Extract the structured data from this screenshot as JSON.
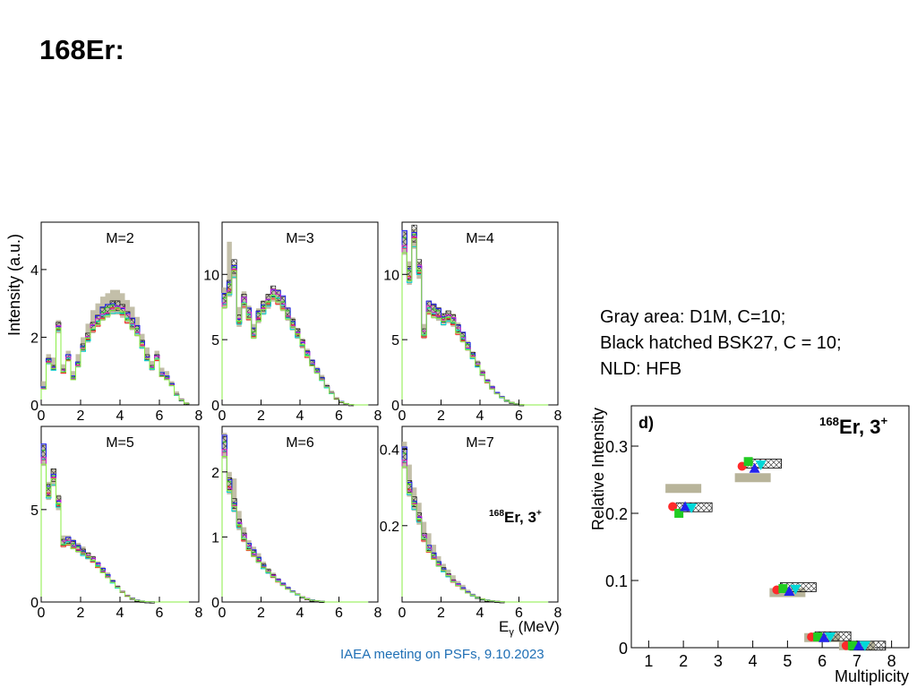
{
  "slide": {
    "title": "168Er:",
    "notes": [
      "Gray area: D1M, C=10;",
      "Black hatched BSK27, C = 10;",
      "NLD: HFB"
    ],
    "footer": "IAEA meeting on PSFs, 9.10.2023"
  },
  "colors": {
    "gray_band": "#b8b49a",
    "series": [
      "#ff2a2a",
      "#22cc22",
      "#2222ee",
      "#00d8d8",
      "#cc22cc",
      "#88ee44"
    ]
  },
  "chart_data": [
    {
      "type": "line",
      "ylabel": "Intensity (a.u.)",
      "xlabel": "",
      "x_ticks": [
        0,
        2,
        4,
        6,
        8
      ],
      "panels": [
        {
          "label": "M=2",
          "ylim": [
            0,
            5.4
          ],
          "y_ticks": [
            0,
            2,
            4
          ],
          "x": [
            0.25,
            0.5,
            0.75,
            1.0,
            1.25,
            1.5,
            1.75,
            2.0,
            2.25,
            2.5,
            2.75,
            3.0,
            3.25,
            3.5,
            3.75,
            4.0,
            4.25,
            4.5,
            4.75,
            5.0,
            5.25,
            5.5,
            5.75,
            6.0,
            6.25,
            6.5,
            6.75,
            7.0,
            7.25,
            7.5
          ],
          "values": [
            0.5,
            1.3,
            1.1,
            2.3,
            1.0,
            1.4,
            0.8,
            1.2,
            1.7,
            2.0,
            2.3,
            2.5,
            2.7,
            2.8,
            2.9,
            2.9,
            2.8,
            2.6,
            2.4,
            2.2,
            1.8,
            1.4,
            1.1,
            1.4,
            0.9,
            0.8,
            0.6,
            0.3,
            0.15,
            0.05
          ],
          "band_high": [
            0.7,
            1.5,
            1.4,
            2.5,
            1.2,
            1.6,
            1.0,
            1.5,
            2.0,
            2.4,
            2.8,
            3.0,
            3.2,
            3.3,
            3.4,
            3.4,
            3.3,
            3.1,
            2.9,
            2.6,
            2.1,
            1.7,
            1.3,
            1.6,
            1.1,
            1.0,
            0.7,
            0.4,
            0.2,
            0.08
          ]
        },
        {
          "label": "M=3",
          "ylim": [
            0,
            14
          ],
          "y_ticks": [
            0,
            5,
            10
          ],
          "x": [
            0.25,
            0.5,
            0.75,
            1.0,
            1.25,
            1.5,
            1.75,
            2.0,
            2.25,
            2.5,
            2.75,
            3.0,
            3.25,
            3.5,
            3.75,
            4.0,
            4.25,
            4.5,
            4.75,
            5.0,
            5.25,
            5.5,
            5.75,
            6.0,
            6.25,
            6.5,
            6.75,
            7.0,
            7.25,
            7.5
          ],
          "values": [
            8.0,
            9.0,
            10.5,
            6.5,
            8.0,
            7.0,
            5.5,
            6.8,
            7.5,
            8.0,
            8.6,
            8.3,
            7.8,
            7.0,
            6.2,
            5.5,
            4.7,
            3.9,
            3.2,
            2.6,
            2.0,
            1.4,
            0.9,
            0.5,
            0.25,
            0.1,
            0.03,
            0,
            0,
            0
          ],
          "band_high": [
            9.0,
            12.5,
            10.8,
            7.5,
            8.7,
            7.6,
            6.2,
            7.4,
            8.0,
            8.5,
            9.0,
            8.7,
            8.2,
            7.5,
            6.7,
            5.9,
            5.1,
            4.3,
            3.5,
            2.9,
            2.3,
            1.6,
            1.1,
            0.6,
            0.3,
            0.15,
            0.05,
            0,
            0,
            0
          ]
        },
        {
          "label": "M=4",
          "ylim": [
            0,
            14
          ],
          "y_ticks": [
            0,
            5,
            10
          ],
          "x": [
            0.25,
            0.5,
            0.75,
            1.0,
            1.25,
            1.5,
            1.75,
            2.0,
            2.25,
            2.5,
            2.75,
            3.0,
            3.25,
            3.5,
            3.75,
            4.0,
            4.25,
            4.5,
            4.75,
            5.0,
            5.25,
            5.5,
            5.75,
            6.0,
            6.25,
            6.5,
            6.75,
            7.0,
            7.25,
            7.5
          ],
          "values": [
            12.5,
            10.0,
            13.0,
            10.5,
            5.5,
            7.5,
            7.2,
            7.0,
            6.6,
            6.8,
            6.5,
            5.8,
            5.2,
            4.5,
            3.8,
            3.1,
            2.4,
            1.8,
            1.3,
            0.9,
            0.6,
            0.35,
            0.2,
            0.08,
            0.03,
            0,
            0,
            0,
            0,
            0
          ],
          "band_high": [
            13.2,
            11.0,
            13.5,
            11.0,
            6.2,
            8.0,
            7.8,
            7.5,
            7.0,
            7.2,
            7.0,
            6.3,
            5.6,
            4.9,
            4.1,
            3.4,
            2.7,
            2.0,
            1.5,
            1.0,
            0.7,
            0.4,
            0.25,
            0.1,
            0.04,
            0,
            0,
            0,
            0,
            0
          ]
        },
        {
          "label": "M=5",
          "ylim": [
            0,
            9.5
          ],
          "y_ticks": [
            0,
            5
          ],
          "x": [
            0.25,
            0.5,
            0.75,
            1.0,
            1.25,
            1.5,
            1.75,
            2.0,
            2.25,
            2.5,
            2.75,
            3.0,
            3.25,
            3.5,
            3.75,
            4.0,
            4.25,
            4.5,
            4.75,
            5.0,
            5.25,
            5.5,
            5.75,
            6.0,
            6.25,
            6.5,
            6.75,
            7.0,
            7.25,
            7.5
          ],
          "values": [
            8.0,
            6.0,
            6.8,
            5.4,
            3.2,
            3.3,
            3.1,
            2.9,
            2.7,
            2.5,
            2.3,
            2.0,
            1.7,
            1.4,
            1.1,
            0.8,
            0.55,
            0.35,
            0.2,
            0.1,
            0.05,
            0.02,
            0.01,
            0,
            0,
            0,
            0,
            0,
            0,
            0
          ],
          "band_high": [
            8.5,
            6.5,
            7.2,
            5.8,
            3.6,
            3.6,
            3.4,
            3.2,
            3.0,
            2.7,
            2.5,
            2.2,
            1.9,
            1.6,
            1.2,
            0.9,
            0.6,
            0.4,
            0.25,
            0.12,
            0.06,
            0.03,
            0.01,
            0,
            0,
            0,
            0,
            0,
            0,
            0
          ]
        },
        {
          "label": "M=6",
          "ylim": [
            0,
            2.7
          ],
          "y_ticks": [
            0,
            1,
            2
          ],
          "x": [
            0.25,
            0.5,
            0.75,
            1.0,
            1.25,
            1.5,
            1.75,
            2.0,
            2.25,
            2.5,
            2.75,
            3.0,
            3.25,
            3.5,
            3.75,
            4.0,
            4.25,
            4.5,
            4.75,
            5.0,
            5.25,
            5.5,
            5.75,
            6.0,
            6.25,
            6.5,
            6.75,
            7.0,
            7.25,
            7.5
          ],
          "values": [
            2.4,
            1.8,
            1.5,
            1.2,
            1.0,
            0.85,
            0.75,
            0.65,
            0.55,
            0.47,
            0.4,
            0.33,
            0.27,
            0.21,
            0.16,
            0.12,
            0.08,
            0.05,
            0.03,
            0.02,
            0.01,
            0,
            0,
            0,
            0,
            0,
            0,
            0,
            0,
            0
          ],
          "band_high": [
            2.6,
            2.0,
            1.9,
            1.4,
            1.15,
            0.95,
            0.85,
            0.75,
            0.62,
            0.52,
            0.45,
            0.37,
            0.3,
            0.24,
            0.18,
            0.13,
            0.09,
            0.06,
            0.035,
            0.02,
            0.01,
            0,
            0,
            0,
            0,
            0,
            0,
            0,
            0,
            0
          ]
        },
        {
          "label": "M=7",
          "ylim": [
            0,
            0.46
          ],
          "y_ticks": [
            0.2,
            0.4
          ],
          "x": [
            0.25,
            0.5,
            0.75,
            1.0,
            1.25,
            1.5,
            1.75,
            2.0,
            2.25,
            2.5,
            2.75,
            3.0,
            3.25,
            3.5,
            3.75,
            4.0,
            4.25,
            4.5,
            4.75,
            5.0,
            5.25,
            5.5,
            5.75,
            6.0,
            6.25,
            6.5,
            6.75,
            7.0,
            7.25,
            7.5
          ],
          "values": [
            0.38,
            0.3,
            0.26,
            0.22,
            0.17,
            0.14,
            0.12,
            0.1,
            0.085,
            0.07,
            0.055,
            0.045,
            0.035,
            0.025,
            0.018,
            0.012,
            0.008,
            0.005,
            0.003,
            0.002,
            0.001,
            0,
            0,
            0,
            0,
            0,
            0,
            0,
            0,
            0
          ],
          "band_high": [
            0.42,
            0.36,
            0.3,
            0.26,
            0.21,
            0.18,
            0.15,
            0.12,
            0.1,
            0.085,
            0.07,
            0.055,
            0.045,
            0.032,
            0.022,
            0.015,
            0.01,
            0.006,
            0.004,
            0.002,
            0.001,
            0,
            0,
            0,
            0,
            0,
            0,
            0,
            0,
            0
          ]
        }
      ],
      "x_axis_label_parts": {
        "main": "E",
        "sub": "γ",
        "tail": " (MeV)"
      },
      "annotation": {
        "super": "168",
        "main": "Er, 3",
        "sup2": "+"
      }
    },
    {
      "type": "scatter",
      "panel_tag": "d)",
      "annotation": {
        "super": "168",
        "main": "Er, 3",
        "sup2": "+"
      },
      "xlabel": "Multiplicity",
      "ylabel": "Relative Intensity",
      "xlim": [
        0.5,
        8.5
      ],
      "ylim": [
        0,
        0.36
      ],
      "x_ticks": [
        1,
        2,
        3,
        4,
        5,
        6,
        7,
        8
      ],
      "y_ticks": [
        0,
        0.1,
        0.2,
        0.3
      ],
      "y_tick_labels": [
        "0",
        "0.1",
        "0.2",
        "0.3"
      ],
      "categories": [
        2,
        4,
        5,
        6,
        7
      ],
      "gray_band": [
        0.237,
        0.253,
        0.082,
        0.015,
        0.003
      ],
      "hatched": [
        0.209,
        0.274,
        0.09,
        0.017,
        0.003
      ],
      "markers": [
        {
          "shape": "circle",
          "color": "#ff2a2a",
          "values": [
            0.21,
            0.27,
            0.086,
            0.016,
            0.003
          ]
        },
        {
          "shape": "square",
          "color": "#22cc22",
          "values": [
            0.2,
            0.277,
            0.088,
            0.016,
            0.003
          ]
        },
        {
          "shape": "triangle-up",
          "color": "#2222ee",
          "values": [
            0.21,
            0.267,
            0.084,
            0.015,
            0.003
          ]
        },
        {
          "shape": "triangle-down",
          "color": "#00d8d8",
          "values": [
            0.208,
            0.272,
            0.087,
            0.016,
            0.003
          ]
        }
      ]
    }
  ]
}
